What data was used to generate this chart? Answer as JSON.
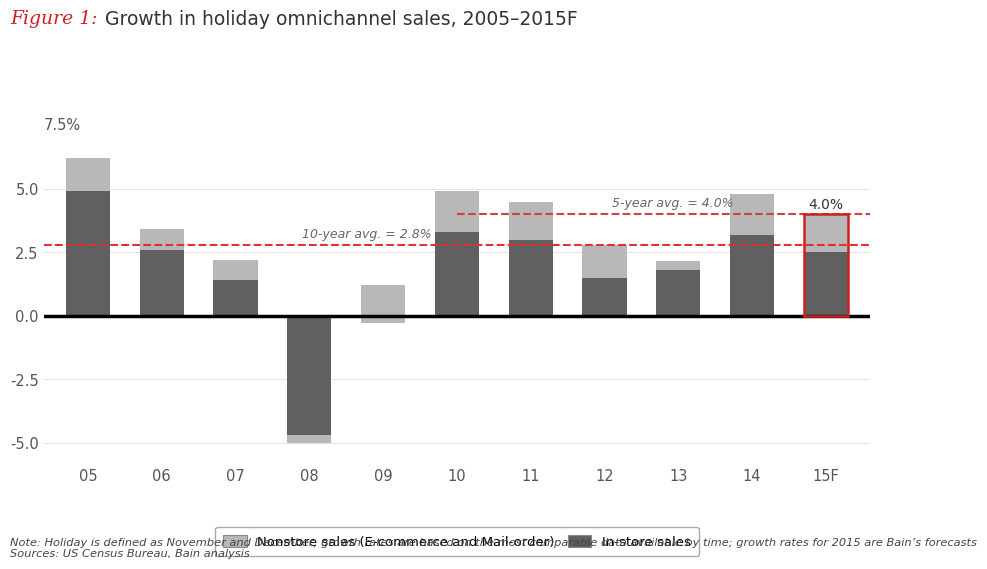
{
  "categories": [
    "05",
    "06",
    "07",
    "08",
    "09",
    "10",
    "11",
    "12",
    "13",
    "14",
    "15F"
  ],
  "instore_sales": [
    4.9,
    2.6,
    1.4,
    -4.7,
    -0.3,
    3.3,
    3.0,
    1.5,
    1.8,
    3.2,
    2.5
  ],
  "nonstore_sales": [
    1.3,
    0.8,
    0.8,
    -0.3,
    1.5,
    1.6,
    1.5,
    1.3,
    0.35,
    1.6,
    1.5
  ],
  "ten_yr_avg": 2.8,
  "five_yr_avg": 4.0,
  "instore_color": "#606060",
  "nonstore_color": "#b8b8b8",
  "ten_yr_line_color": "#e03030",
  "five_yr_line_color": "#cc4444",
  "title_figure": "Figure 1:",
  "title_main": "Growth in holiday omnichannel sales, 2005–2015F",
  "title_figure_color": "#cc2222",
  "title_main_color": "#333333",
  "ylim": [
    -5.8,
    8.2
  ],
  "ten_yr_label": "10-year avg. = 2.8%",
  "five_yr_label": "5-year avg. = 4.0%",
  "forecast_label": "4.0%",
  "legend_nonstore": "Nonstore sales (E-commerce and Mail-order)",
  "legend_instore": "In-store sales",
  "note_text": "Note: Holiday is defined as November and December; growth rates are based on the most comparable data available by time; growth rates for 2015 are Bain’s forecasts\nSources: US Census Bureau, Bain analysis",
  "background_color": "#ffffff",
  "bar_width": 0.6
}
